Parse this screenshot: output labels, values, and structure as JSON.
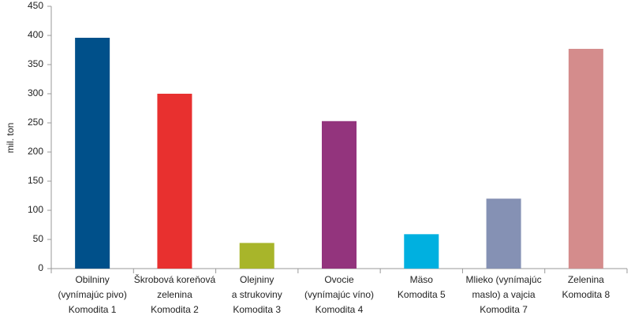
{
  "chart_data": {
    "type": "bar",
    "y_label": "mil. ton",
    "categories": [
      "Obilniny\n(vynímajúc pivo)\nKomodita 1",
      "Škrobová koreňová\nzelenina\nKomodita 2",
      "Olejniny\na strukoviny\nKomodita 3",
      "Ovocie\n(vynímajúc víno)\nKomodita 4",
      "Mäso\nKomodita 5",
      "Mlieko (vynímajúc\nmaslo) a vajcia\nKomodita 7",
      "Zelenina\nKomodita 8"
    ],
    "values": [
      396,
      300,
      44,
      253,
      59,
      120,
      377
    ],
    "colors": [
      "#00508a",
      "#e8302f",
      "#a8b52a",
      "#93347d",
      "#00b0e0",
      "#8591b4",
      "#d48c8c"
    ],
    "ylim": [
      0,
      450
    ],
    "yticks": [
      0,
      50,
      100,
      150,
      200,
      250,
      300,
      350,
      400,
      450
    ],
    "grid": false
  }
}
